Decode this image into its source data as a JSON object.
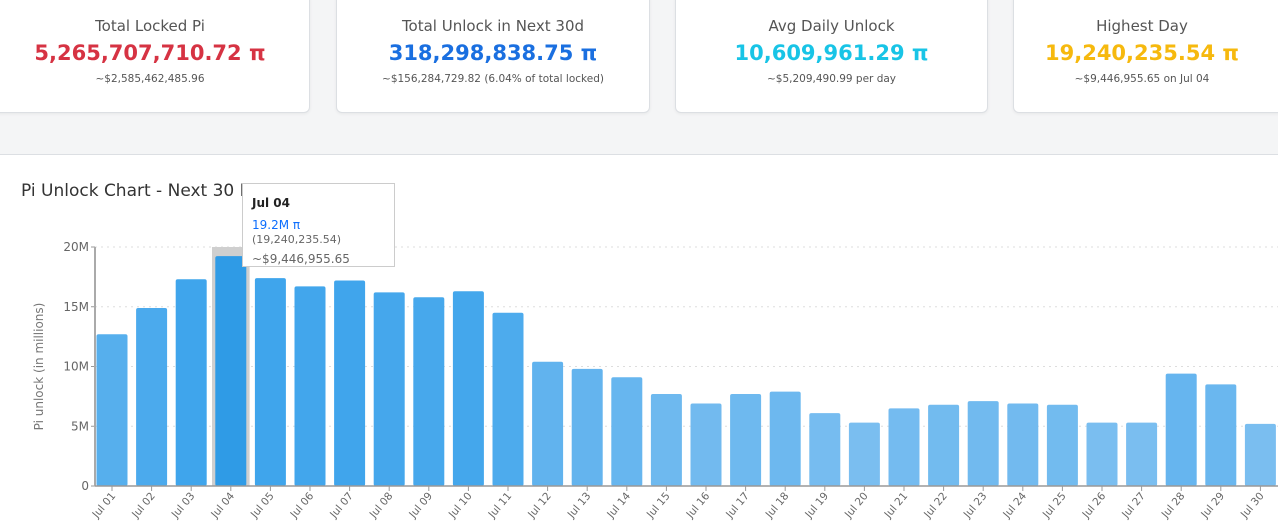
{
  "cards": [
    {
      "title": "Total Locked Pi",
      "value": "5,265,707,710.72 π",
      "sub": "~$2,585,462,485.96",
      "color": "#d63343"
    },
    {
      "title": "Total Unlock in Next 30d",
      "value": "318,298,838.75 π",
      "sub": "~$156,284,729.82 (6.04% of total locked)",
      "color": "#1a6fe0"
    },
    {
      "title": "Avg Daily Unlock",
      "value": "10,609,961.29 π",
      "sub": "~$5,209,490.99 per day",
      "color": "#18c4e6"
    },
    {
      "title": "Highest Day",
      "value": "19,240,235.54 π",
      "sub": "~$9,446,955.65 on Jul 04",
      "color": "#f6b90e"
    }
  ],
  "panel": {
    "title": "Pi Unlock Chart - Next 30 Days"
  },
  "tooltip": {
    "date": "Jul 04",
    "value": "19.2M π",
    "exact": "(19,240,235.54)",
    "usd": "~$9,446,955.65"
  },
  "chart_data": {
    "type": "bar",
    "ylabel": "Pi unlock (in millions)",
    "ylim": [
      0,
      20
    ],
    "yticks": [
      "0",
      "5M",
      "10M",
      "15M",
      "20M"
    ],
    "grid": true,
    "categories": [
      "Jul 01",
      "Jul 02",
      "Jul 03",
      "Jul 04",
      "Jul 05",
      "Jul 06",
      "Jul 07",
      "Jul 08",
      "Jul 09",
      "Jul 10",
      "Jul 11",
      "Jul 12",
      "Jul 13",
      "Jul 14",
      "Jul 15",
      "Jul 16",
      "Jul 17",
      "Jul 18",
      "Jul 19",
      "Jul 20",
      "Jul 21",
      "Jul 22",
      "Jul 23",
      "Jul 24",
      "Jul 25",
      "Jul 26",
      "Jul 27",
      "Jul 28",
      "Jul 29",
      "Jul 30"
    ],
    "values": [
      12.7,
      14.9,
      17.3,
      19.24,
      17.4,
      16.7,
      17.2,
      16.2,
      15.8,
      16.3,
      14.5,
      10.4,
      9.8,
      9.1,
      7.7,
      6.9,
      7.7,
      7.9,
      6.1,
      5.3,
      6.5,
      6.8,
      7.1,
      6.9,
      6.8,
      5.3,
      5.3,
      9.4,
      8.5,
      5.2
    ],
    "highlighted": "Jul 04",
    "bar_color": "#36a2eb"
  }
}
